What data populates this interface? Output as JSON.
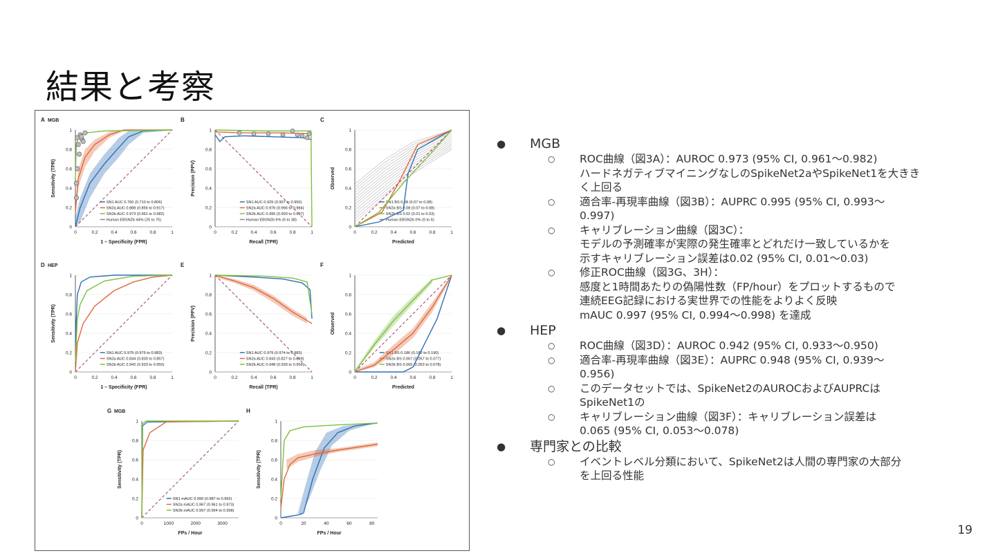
{
  "slide": {
    "title": "結果と考察",
    "page_number": "19"
  },
  "figure": {
    "panels": [
      {
        "letter": "A",
        "cohort": "MGB",
        "ylabel": "Sensitivity (TPR)",
        "xlabel": "1 – Specificity (FPR)",
        "xticks": [
          "0",
          "0.2",
          "0.4",
          "0.6",
          "0.8",
          "1"
        ],
        "yticks": [
          "0",
          "0.2",
          "0.4",
          "0.6",
          "0.8",
          "1"
        ],
        "legend": [
          "SN1   AUC 0.760 (0.710 to 0.806)",
          "SN2a AUC 0.888 (0.856 to 0.917)",
          "SN2b AUC 0.973 (0.961 to 0.982)",
          "Human EBSN2b 44% (25 to 75)"
        ]
      },
      {
        "letter": "B",
        "cohort": "",
        "ylabel": "Precision (PPV)",
        "xlabel": "Recall (TPR)",
        "xticks": [
          "0",
          "0.2",
          "0.4",
          "0.6",
          "0.8",
          "1"
        ],
        "yticks": [
          "0",
          "0.2",
          "0.4",
          "0.6",
          "0.8",
          "1"
        ],
        "legend": [
          "SN1   AUC 0.929 (0.907 to 0.950)",
          "SN2a AUC 0.976 (0.966 to 0.984)",
          "SN2b AUC 0.995 (0.993 to 0.997)",
          "Human EBSN2b 6% (6 to 38)"
        ]
      },
      {
        "letter": "C",
        "cohort": "",
        "ylabel": "Observed",
        "xlabel": "Predicted",
        "xticks": [
          "0",
          "0.2",
          "0.4",
          "0.6",
          "0.8",
          "1"
        ],
        "yticks": [
          "0",
          "0.2",
          "0.4",
          "0.6",
          "0.8",
          "1"
        ],
        "legend": [
          "SN1   BS 0.08 (0.07 to 0.08)",
          "SN2a BS 0.08 (0.07 to 0.08)",
          "SN2b BS 0.02 (0.01 to 0.03)",
          "Human EBSN2b 0% (0 to 6)"
        ]
      },
      {
        "letter": "D",
        "cohort": "HEP",
        "ylabel": "Sensitivity (TPR)",
        "xlabel": "1 – Specificity (FPR)",
        "xticks": [
          "0",
          "0.2",
          "0.4",
          "0.6",
          "0.8",
          "1"
        ],
        "yticks": [
          "0",
          "0.2",
          "0.4",
          "0.6",
          "0.8",
          "1"
        ],
        "legend": [
          "SN1   AUC 0.979 (0.975 to 0.983)",
          "SN2a AUC 0.844 (0.830 to 0.857)",
          "SN2b AUC 0.942 (0.933 to 0.950)"
        ]
      },
      {
        "letter": "E",
        "cohort": "",
        "ylabel": "Precision (PPV)",
        "xlabel": "Recall (TPR)",
        "xticks": [
          "0",
          "0.2",
          "0.4",
          "0.6",
          "0.8",
          "1"
        ],
        "yticks": [
          "0",
          "0.2",
          "0.4",
          "0.6",
          "0.8",
          "1"
        ],
        "legend": [
          "SN1   AUC 0.979 (0.974 to 0.983)",
          "SN2a AUC 0.843 (0.827 to 0.859)",
          "SN2b AUC 0.948 (0.939 to 0.956)"
        ]
      },
      {
        "letter": "F",
        "cohort": "",
        "ylabel": "Observed",
        "xlabel": "Predicted",
        "xticks": [
          "0",
          "0.2",
          "0.4",
          "0.6",
          "0.8",
          "1"
        ],
        "yticks": [
          "0",
          "0.2",
          "0.4",
          "0.6",
          "0.8",
          "1"
        ],
        "legend": [
          "SN1   BS 0.186 (0.182 to 0.190)",
          "SN2a BS 0.067 (0.057 to 0.077)",
          "SN2b BS 0.065 (0.053 to 0.078)"
        ]
      },
      {
        "letter": "G",
        "cohort": "MGB",
        "ylabel": "Sensitivity (TPR)",
        "xlabel": "FPs / Hour",
        "xticks": [
          "0",
          "1000",
          "2000",
          "3000"
        ],
        "yticks": [
          "0",
          "0.2",
          "0.4",
          "0.6",
          "0.8",
          "1"
        ],
        "legend": [
          "SN1   mAUC 0.990 (0.987 to 0.992)",
          "SN2a mAUC 0.967 (0.961 to 0.973)",
          "SN2b mAUC 0.997 (0.994 to 0.998)"
        ]
      },
      {
        "letter": "H",
        "cohort": "",
        "ylabel": "Sensitivity (TPR)",
        "xlabel": "FPs / Hour",
        "xticks": [
          "0",
          "20",
          "40",
          "60",
          "80"
        ],
        "yticks": [
          "0",
          "0.2",
          "0.4",
          "0.6",
          "0.8",
          "1"
        ],
        "legend": []
      }
    ],
    "colors": {
      "SN1": "#2f6fb5",
      "SN2a": "#e0683a",
      "SN2b": "#7bbf3e",
      "diag": "#9b3a5a",
      "human": "#888888"
    }
  },
  "bullets": [
    {
      "label": "MGB",
      "items": [
        [
          "ROC曲線（図3A）：AUROC 0.973 (95% CI, 0.961〜0.982)",
          "ハードネガティブマイニングなしのSpikeNet2aやSpikeNet1を大きき",
          "く上回る"
        ],
        [
          "適合率-再現率曲線（図3B）：AUPRC 0.995 (95% CI, 0.993〜",
          "0.997)"
        ],
        [
          "キャリブレーション曲線（図3C）：",
          "モデルの予測確率が実際の発生確率とどれだけ一致しているかを",
          "示すキャリブレーション誤差は0.02 (95% CI, 0.01〜0.03)"
        ],
        [
          "修正ROC曲線（図3G、3H）：",
          "感度と1時間あたりの偽陽性数（FP/hour）をプロットするもので",
          "連続EEG記録における実世界での性能をよりよく反映",
          "mAUC 0.997 (95% CI, 0.994〜0.998) を達成"
        ]
      ]
    },
    {
      "label": "HEP",
      "items": [
        [
          "ROC曲線（図3D）：AUROC 0.942 (95% CI, 0.933〜0.950)"
        ],
        [
          "適合率-再現率曲線（図3E）：AUPRC 0.948 (95% CI, 0.939〜",
          "0.956)"
        ],
        [
          "このデータセットでは、SpikeNet2のAUROCおよびAUPRCは",
          "SpikeNet1の"
        ],
        [
          "キャリブレーション曲線（図3F）：キャリブレーション誤差は",
          "0.065 (95% CI, 0.053〜0.078)"
        ]
      ]
    },
    {
      "label": "専門家との比較",
      "items": [
        [
          "イベントレベル分類において、SpikeNet2は人間の専門家の大部分",
          "を上回る性能"
        ]
      ]
    }
  ]
}
